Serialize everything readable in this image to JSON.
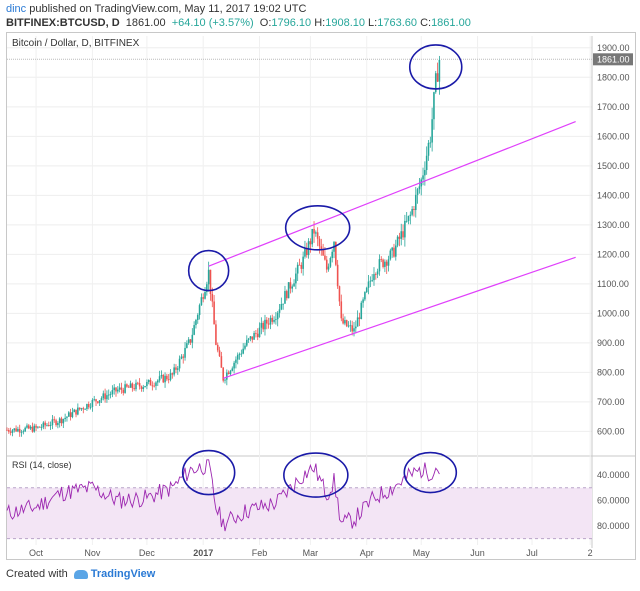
{
  "header": {
    "user": "dinc",
    "published_text": " published on TradingView.com, May 11, 2017 19:02 UTC"
  },
  "quote": {
    "symbol": "BITFINEX:BTCUSD, D",
    "last": "1861.00",
    "change": "+64.10 (+3.57%)",
    "o_label": "O:",
    "o": "1796.10",
    "h_label": "H:",
    "h": "1908.10",
    "l_label": "L:",
    "l": "1763.60",
    "c_label": "C:",
    "c": "1861.00"
  },
  "footer": {
    "created_with": "Created with",
    "brand": "TradingView"
  },
  "colors": {
    "up": "#26a69a",
    "down": "#ef5350",
    "channel": "#e040fb",
    "annotation": "#1a1aa8",
    "rsi_line": "#9c27b0",
    "rsi_band": "#f3e5f5"
  },
  "chart_data": [
    {
      "type": "candlestick",
      "title": "Bitcoin / Dollar, D, BITFINEX",
      "x_ticks": [
        "Oct",
        "Nov",
        "Dec",
        "2017",
        "Feb",
        "Mar",
        "Apr",
        "May",
        "Jun",
        "Jul",
        "2"
      ],
      "y_ticks": [
        600,
        700,
        800,
        900,
        1000,
        1100,
        1200,
        1300,
        1400,
        1500,
        1600,
        1700,
        1800,
        1900
      ],
      "ylim": [
        520,
        1940
      ],
      "last_price_label": "1861.00",
      "series": [
        {
          "values": [
            [
              "2016-09-15",
              605
            ],
            [
              "2016-10-01",
              610
            ],
            [
              "2016-10-15",
              640
            ],
            [
              "2016-11-01",
              700
            ],
            [
              "2016-11-15",
              740
            ],
            [
              "2016-12-01",
              760
            ],
            [
              "2016-12-15",
              790
            ],
            [
              "2016-12-25",
              910
            ],
            [
              "2017-01-04",
              1140
            ],
            [
              "2017-01-08",
              900
            ],
            [
              "2017-01-12",
              780
            ],
            [
              "2017-01-25",
              900
            ],
            [
              "2017-02-10",
              1000
            ],
            [
              "2017-02-25",
              1180
            ],
            [
              "2017-03-03",
              1280
            ],
            [
              "2017-03-10",
              1150
            ],
            [
              "2017-03-14",
              1250
            ],
            [
              "2017-03-18",
              970
            ],
            [
              "2017-03-25",
              940
            ],
            [
              "2017-04-05",
              1150
            ],
            [
              "2017-04-15",
              1200
            ],
            [
              "2017-04-25",
              1330
            ],
            [
              "2017-05-01",
              1450
            ],
            [
              "2017-05-06",
              1600
            ],
            [
              "2017-05-09",
              1780
            ],
            [
              "2017-05-11",
              1861
            ]
          ]
        }
      ],
      "trendlines": [
        {
          "from": [
            "2017-01-04",
            1160
          ],
          "to": [
            "2017-07-25",
            1650
          ]
        },
        {
          "from": [
            "2017-01-12",
            780
          ],
          "to": [
            "2017-07-25",
            1190
          ]
        }
      ]
    },
    {
      "type": "line",
      "title": "RSI (14, close)",
      "y_ticks": [
        "40.0000",
        "60.0000",
        "80.0000"
      ],
      "ylim": [
        25,
        95
      ],
      "band": [
        30,
        70
      ],
      "series": [
        {
          "values": [
            [
              "2016-09-15",
              50
            ],
            [
              "2016-10-01",
              55
            ],
            [
              "2016-10-15",
              66
            ],
            [
              "2016-11-01",
              70
            ],
            [
              "2016-11-15",
              60
            ],
            [
              "2016-12-01",
              62
            ],
            [
              "2016-12-15",
              70
            ],
            [
              "2016-12-25",
              84
            ],
            [
              "2017-01-04",
              88
            ],
            [
              "2017-01-08",
              55
            ],
            [
              "2017-01-12",
              42
            ],
            [
              "2017-01-25",
              52
            ],
            [
              "2017-02-10",
              58
            ],
            [
              "2017-02-25",
              80
            ],
            [
              "2017-03-03",
              86
            ],
            [
              "2017-03-10",
              65
            ],
            [
              "2017-03-14",
              75
            ],
            [
              "2017-03-18",
              42
            ],
            [
              "2017-03-25",
              45
            ],
            [
              "2017-04-05",
              62
            ],
            [
              "2017-04-15",
              70
            ],
            [
              "2017-04-25",
              80
            ],
            [
              "2017-05-01",
              84
            ],
            [
              "2017-05-06",
              82
            ],
            [
              "2017-05-09",
              86
            ],
            [
              "2017-05-11",
              84
            ]
          ]
        }
      ]
    }
  ]
}
